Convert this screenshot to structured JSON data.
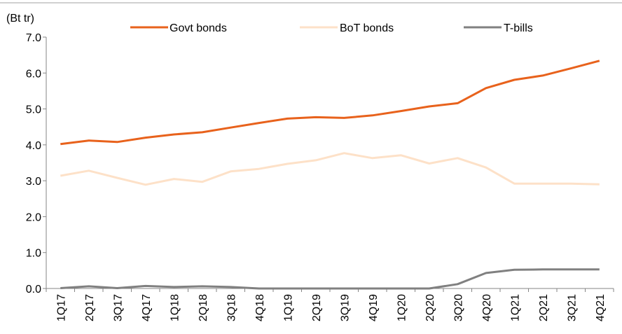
{
  "chart_data": {
    "type": "line",
    "title": "",
    "ylabel": "(Bt tr)",
    "xlabel": "",
    "ylim": [
      0,
      7
    ],
    "y_ticks": [
      "0.0",
      "1.0",
      "2.0",
      "3.0",
      "4.0",
      "5.0",
      "6.0",
      "7.0"
    ],
    "grid": false,
    "legend_position": "top",
    "categories": [
      "1Q17",
      "2Q17",
      "3Q17",
      "4Q17",
      "1Q18",
      "2Q18",
      "3Q18",
      "4Q18",
      "1Q19",
      "2Q19",
      "3Q19",
      "4Q19",
      "1Q20",
      "2Q20",
      "3Q20",
      "4Q20",
      "1Q21",
      "2Q21",
      "3Q21",
      "4Q21"
    ],
    "series": [
      {
        "name": "Govt bonds",
        "color": "#e8621c",
        "values": [
          4.02,
          4.12,
          4.08,
          4.2,
          4.29,
          4.35,
          4.48,
          4.61,
          4.73,
          4.77,
          4.75,
          4.82,
          4.94,
          5.07,
          5.16,
          5.58,
          5.81,
          5.93,
          6.13,
          6.34
        ]
      },
      {
        "name": "BoT bonds",
        "color": "#fde1c8",
        "values": [
          3.14,
          3.28,
          3.08,
          2.89,
          3.05,
          2.97,
          3.26,
          3.33,
          3.47,
          3.57,
          3.77,
          3.63,
          3.71,
          3.48,
          3.63,
          3.37,
          2.92,
          2.92,
          2.92,
          2.9
        ]
      },
      {
        "name": "T-bills",
        "color": "#808080",
        "values": [
          0.01,
          0.06,
          0.01,
          0.07,
          0.04,
          0.06,
          0.04,
          0.0,
          0.0,
          0.0,
          0.0,
          0.0,
          0.0,
          0.0,
          0.12,
          0.43,
          0.52,
          0.53,
          0.53,
          0.53
        ]
      }
    ]
  }
}
